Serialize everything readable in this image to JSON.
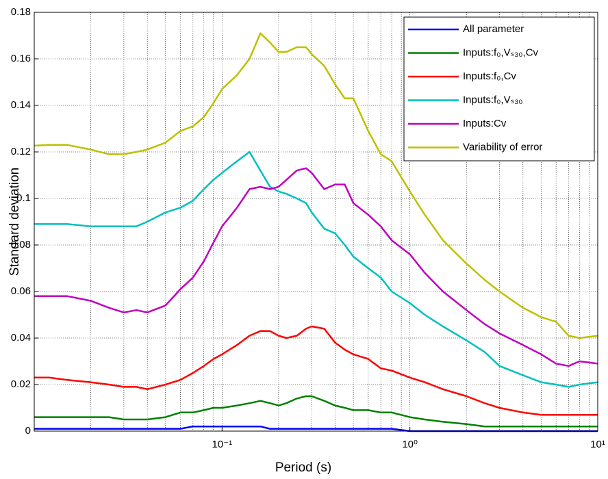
{
  "chart_data": {
    "type": "line",
    "xlabel": "Period (s)",
    "ylabel": "Standard deviation",
    "xscale": "log",
    "grid": true,
    "legend": "upper right",
    "xlim": [
      0.01,
      10
    ],
    "xticks": [
      {
        "value": 0.1,
        "label": "10⁻¹"
      },
      {
        "value": 1,
        "label": "10⁰"
      },
      {
        "value": 10,
        "label": "10¹"
      }
    ],
    "ylim": [
      0,
      0.18
    ],
    "yticks": [
      0,
      0.02,
      0.04,
      0.06,
      0.08,
      0.1,
      0.12,
      0.14,
      0.16,
      0.18
    ],
    "x": [
      0.01,
      0.012,
      0.015,
      0.02,
      0.025,
      0.03,
      0.035,
      0.04,
      0.05,
      0.06,
      0.07,
      0.08,
      0.09,
      0.1,
      0.12,
      0.14,
      0.16,
      0.18,
      0.2,
      0.22,
      0.25,
      0.28,
      0.3,
      0.35,
      0.4,
      0.45,
      0.5,
      0.6,
      0.7,
      0.8,
      1,
      1.2,
      1.5,
      2,
      2.5,
      3,
      4,
      5,
      6,
      7,
      8,
      10
    ],
    "series": [
      {
        "name": "All parameter",
        "color": "#0000ff",
        "values": [
          0.001,
          0.001,
          0.001,
          0.001,
          0.001,
          0.001,
          0.001,
          0.001,
          0.001,
          0.001,
          0.002,
          0.002,
          0.002,
          0.002,
          0.002,
          0.002,
          0.002,
          0.001,
          0.001,
          0.001,
          0.001,
          0.001,
          0.001,
          0.001,
          0.001,
          0.001,
          0.001,
          0.001,
          0.001,
          0.001,
          0,
          0,
          0,
          0,
          0,
          0,
          0,
          0,
          0,
          0,
          0,
          0
        ]
      },
      {
        "name": "Inputs:f₀,Vₛ₃₀,Cv",
        "color": "#008000",
        "values": [
          0.006,
          0.006,
          0.006,
          0.006,
          0.006,
          0.005,
          0.005,
          0.005,
          0.006,
          0.008,
          0.008,
          0.009,
          0.01,
          0.01,
          0.011,
          0.012,
          0.013,
          0.012,
          0.011,
          0.012,
          0.014,
          0.015,
          0.015,
          0.013,
          0.011,
          0.01,
          0.009,
          0.009,
          0.008,
          0.008,
          0.006,
          0.005,
          0.004,
          0.003,
          0.002,
          0.002,
          0.002,
          0.002,
          0.002,
          0.002,
          0.002,
          0.002
        ]
      },
      {
        "name": "Inputs:f₀,Cv",
        "color": "#ff0000",
        "values": [
          0.023,
          0.023,
          0.022,
          0.021,
          0.02,
          0.019,
          0.019,
          0.018,
          0.02,
          0.022,
          0.025,
          0.028,
          0.031,
          0.033,
          0.037,
          0.041,
          0.043,
          0.043,
          0.041,
          0.04,
          0.041,
          0.044,
          0.045,
          0.044,
          0.038,
          0.035,
          0.033,
          0.031,
          0.027,
          0.026,
          0.023,
          0.021,
          0.018,
          0.015,
          0.012,
          0.01,
          0.008,
          0.007,
          0.007,
          0.007,
          0.007,
          0.007
        ]
      },
      {
        "name": "Inputs:f₀,Vₛ₃₀",
        "color": "#00bfbf",
        "values": [
          0.089,
          0.089,
          0.089,
          0.088,
          0.088,
          0.088,
          0.088,
          0.09,
          0.094,
          0.096,
          0.099,
          0.104,
          0.108,
          0.111,
          0.116,
          0.12,
          0.112,
          0.105,
          0.103,
          0.102,
          0.1,
          0.098,
          0.094,
          0.087,
          0.085,
          0.08,
          0.075,
          0.07,
          0.066,
          0.06,
          0.055,
          0.05,
          0.045,
          0.039,
          0.034,
          0.028,
          0.024,
          0.021,
          0.02,
          0.019,
          0.02,
          0.021
        ]
      },
      {
        "name": "Inputs:Cv",
        "color": "#bf00bf",
        "values": [
          0.058,
          0.058,
          0.058,
          0.056,
          0.053,
          0.051,
          0.052,
          0.051,
          0.054,
          0.061,
          0.066,
          0.073,
          0.081,
          0.088,
          0.096,
          0.104,
          0.105,
          0.104,
          0.105,
          0.108,
          0.112,
          0.113,
          0.111,
          0.104,
          0.106,
          0.106,
          0.098,
          0.093,
          0.088,
          0.082,
          0.076,
          0.068,
          0.06,
          0.052,
          0.046,
          0.042,
          0.037,
          0.033,
          0.029,
          0.028,
          0.03,
          0.029
        ]
      },
      {
        "name": "Variability of error",
        "color": "#bfbf00",
        "values": [
          0.1227,
          0.123,
          0.123,
          0.121,
          0.119,
          0.119,
          0.12,
          0.121,
          0.124,
          0.129,
          0.131,
          0.135,
          0.141,
          0.147,
          0.153,
          0.16,
          0.171,
          0.167,
          0.163,
          0.163,
          0.165,
          0.165,
          0.162,
          0.157,
          0.149,
          0.143,
          0.143,
          0.129,
          0.119,
          0.116,
          0.103,
          0.093,
          0.082,
          0.072,
          0.065,
          0.06,
          0.053,
          0.049,
          0.047,
          0.041,
          0.04,
          0.041
        ]
      }
    ]
  }
}
